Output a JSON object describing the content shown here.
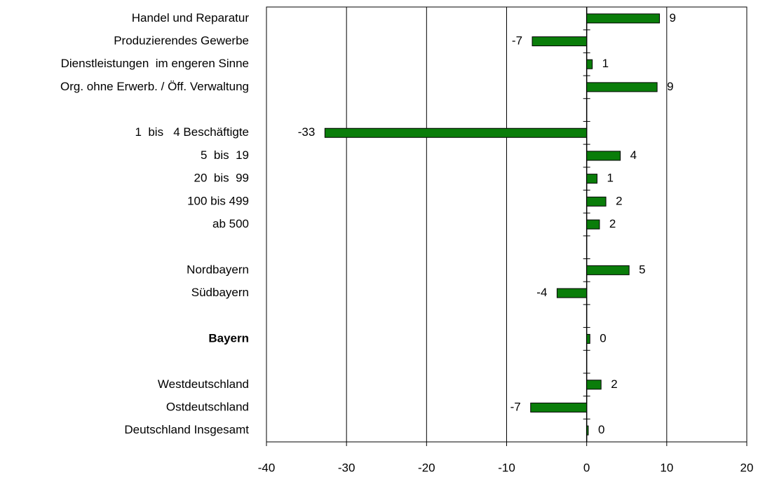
{
  "chart_data": {
    "type": "barh",
    "categories": [
      "Handel und Reparatur",
      "Produzierendes Gewerbe",
      "Dienstleistungen  im engeren Sinne",
      "Org. ohne Erwerb. / Öff. Verwaltung",
      null,
      "1  bis   4 Beschäftigte",
      "5  bis  19",
      "20  bis  99",
      "100 bis 499",
      "ab 500",
      null,
      "Nordbayern",
      "Südbayern",
      null,
      "Bayern",
      null,
      "Westdeutschland",
      "Ostdeutschland",
      "Deutschland Insgesamt"
    ],
    "values": [
      9.1,
      -6.8,
      0.7,
      8.8,
      null,
      -32.7,
      4.2,
      1.3,
      2.4,
      1.6,
      null,
      5.3,
      -3.7,
      null,
      0.4,
      null,
      1.8,
      -7.0,
      0.2
    ],
    "value_labels": [
      "9",
      "-7",
      "1",
      "9",
      null,
      "-33",
      "4",
      "1",
      "2",
      "2",
      null,
      "5",
      "-4",
      null,
      "0",
      null,
      "2",
      "-7",
      "0"
    ],
    "bold_categories": [
      14
    ],
    "color": "#0a7d0a",
    "xlim": [
      -40,
      20
    ],
    "xticks": [
      -40,
      -30,
      -20,
      -10,
      0,
      10,
      20
    ],
    "grid": true
  }
}
